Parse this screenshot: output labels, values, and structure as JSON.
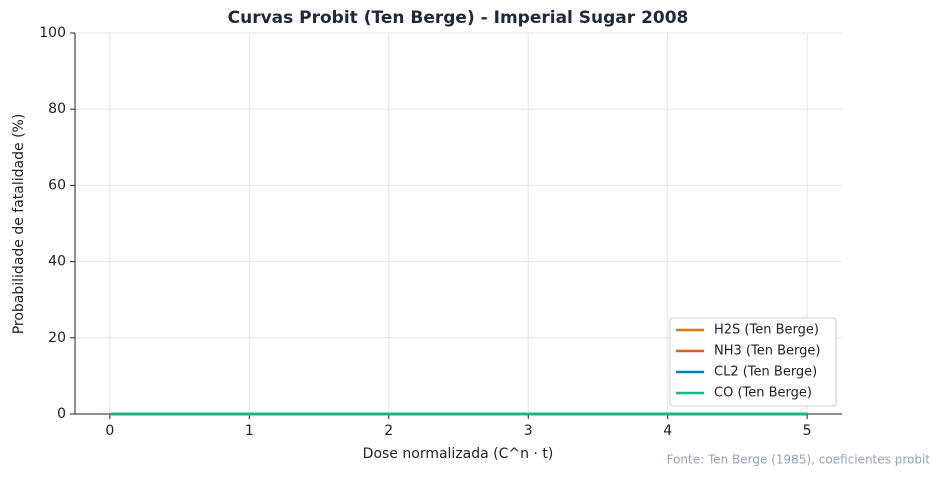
{
  "chart_data": {
    "type": "line",
    "title": "Curvas Probit (Ten Berge) - Imperial Sugar 2008",
    "x_label": "Dose normalizada (C^n · t)",
    "y_label": "Probabilidade de fatalidade (%)",
    "source": "Fonte: Ten Berge (1985), coeficientes probit",
    "x": [
      0,
      1,
      2,
      3,
      4,
      5
    ],
    "series": [
      {
        "name": "H2S (Ten Berge)",
        "color": "#d97706",
        "values": [
          0,
          0,
          0,
          0,
          0,
          0
        ]
      },
      {
        "name": "NH3 (Ten Berge)",
        "color": "#ea580c",
        "values": [
          0,
          0,
          0,
          0,
          0,
          0
        ]
      },
      {
        "name": "CL2 (Ten Berge)",
        "color": "#0284c7",
        "values": [
          0,
          0,
          0,
          0,
          0,
          0
        ]
      },
      {
        "name": "CO (Ten Berge)",
        "color": "#10b981",
        "values": [
          0,
          0,
          0,
          0,
          0,
          0
        ]
      }
    ],
    "xlim": [
      -0.25,
      5.25
    ],
    "xticks": [
      0,
      1,
      2,
      3,
      4,
      5
    ],
    "ylim": [
      0,
      100
    ],
    "yticks": [
      0,
      20,
      40,
      60,
      80,
      100
    ],
    "grid": true,
    "legend": "lower right"
  }
}
